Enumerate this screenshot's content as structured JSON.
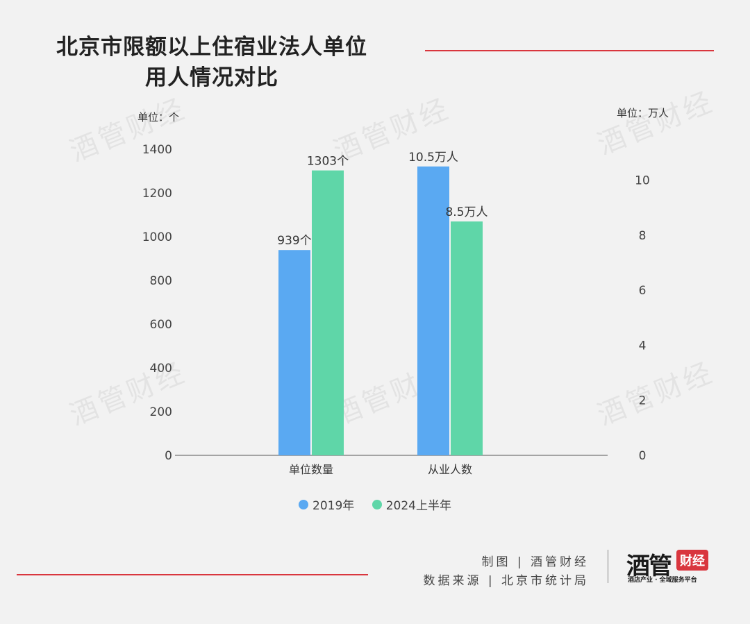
{
  "title": {
    "line1": "北京市限额以上住宿业法人单位",
    "line2": "用人情况对比"
  },
  "watermark": "酒管财经",
  "chart_data": {
    "type": "bar",
    "categories": [
      "单位数量",
      "从业人数"
    ],
    "series": [
      {
        "name": "2019年",
        "color": "#5aa9f2"
      },
      {
        "name": "2024上半年",
        "color": "#5fd6a8"
      }
    ],
    "bars": [
      {
        "category": "单位数量",
        "series": "2019年",
        "axis": "left",
        "value": 939,
        "label": "939个"
      },
      {
        "category": "单位数量",
        "series": "2024上半年",
        "axis": "left",
        "value": 1303,
        "label": "1303个"
      },
      {
        "category": "从业人数",
        "series": "2019年",
        "axis": "right",
        "value": 10.5,
        "label": "10.5万人"
      },
      {
        "category": "从业人数",
        "series": "2024上半年",
        "axis": "right",
        "value": 8.5,
        "label": "8.5万人"
      }
    ],
    "y_left": {
      "unit_label": "单位：个",
      "ylim": [
        0,
        1400
      ],
      "ticks": [
        0,
        200,
        400,
        600,
        800,
        1000,
        1200,
        1400
      ]
    },
    "y_right": {
      "unit_label": "单位：万人",
      "ylim": [
        0,
        10.5
      ],
      "ticks": [
        0,
        2,
        4,
        6,
        8,
        10
      ]
    },
    "legend_position": "bottom-center",
    "grid": false
  },
  "footer": {
    "line1": "制图 | 酒管财经",
    "line2": "数据来源 | 北京市统计局",
    "logo_main": "酒管",
    "logo_badge": "财经",
    "logo_slogan": "酒店产业 · 全域服务平台"
  }
}
